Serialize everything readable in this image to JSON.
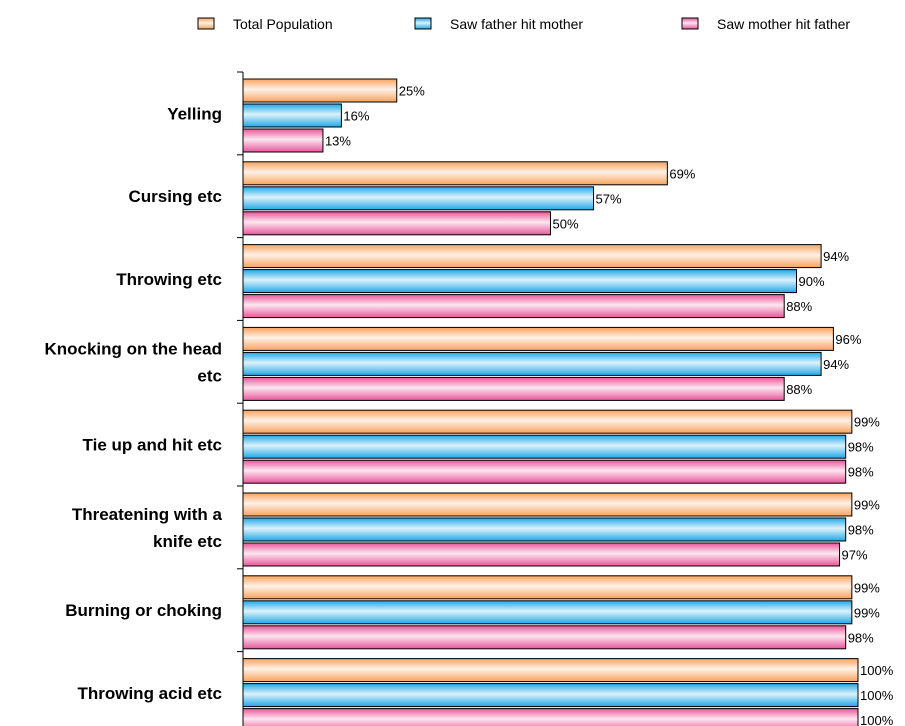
{
  "chart_data": {
    "type": "bar",
    "orientation": "horizontal",
    "categories": [
      [
        "Yelling"
      ],
      [
        "Cursing etc"
      ],
      [
        "Throwing etc"
      ],
      [
        "Knocking on the head",
        "etc"
      ],
      [
        "Tie up and hit etc"
      ],
      [
        "Threatening with a",
        "knife etc"
      ],
      [
        "Burning or choking"
      ],
      [
        "Throwing acid etc"
      ]
    ],
    "series": [
      {
        "name": "Total Population",
        "values": [
          25,
          69,
          94,
          96,
          99,
          99,
          99,
          100
        ],
        "color": "#f7a35c"
      },
      {
        "name": "Saw father hit mother",
        "values": [
          16,
          57,
          90,
          94,
          98,
          98,
          99,
          100
        ],
        "color": "#1ea8e6"
      },
      {
        "name": "Saw mother hit father",
        "values": [
          13,
          50,
          88,
          88,
          98,
          97,
          98,
          100
        ],
        "color": "#e8559a"
      }
    ],
    "value_suffix": "%",
    "xlim": [
      0,
      100
    ],
    "legend_position": "top",
    "grid": false,
    "title": "",
    "xlabel": "",
    "ylabel": ""
  }
}
